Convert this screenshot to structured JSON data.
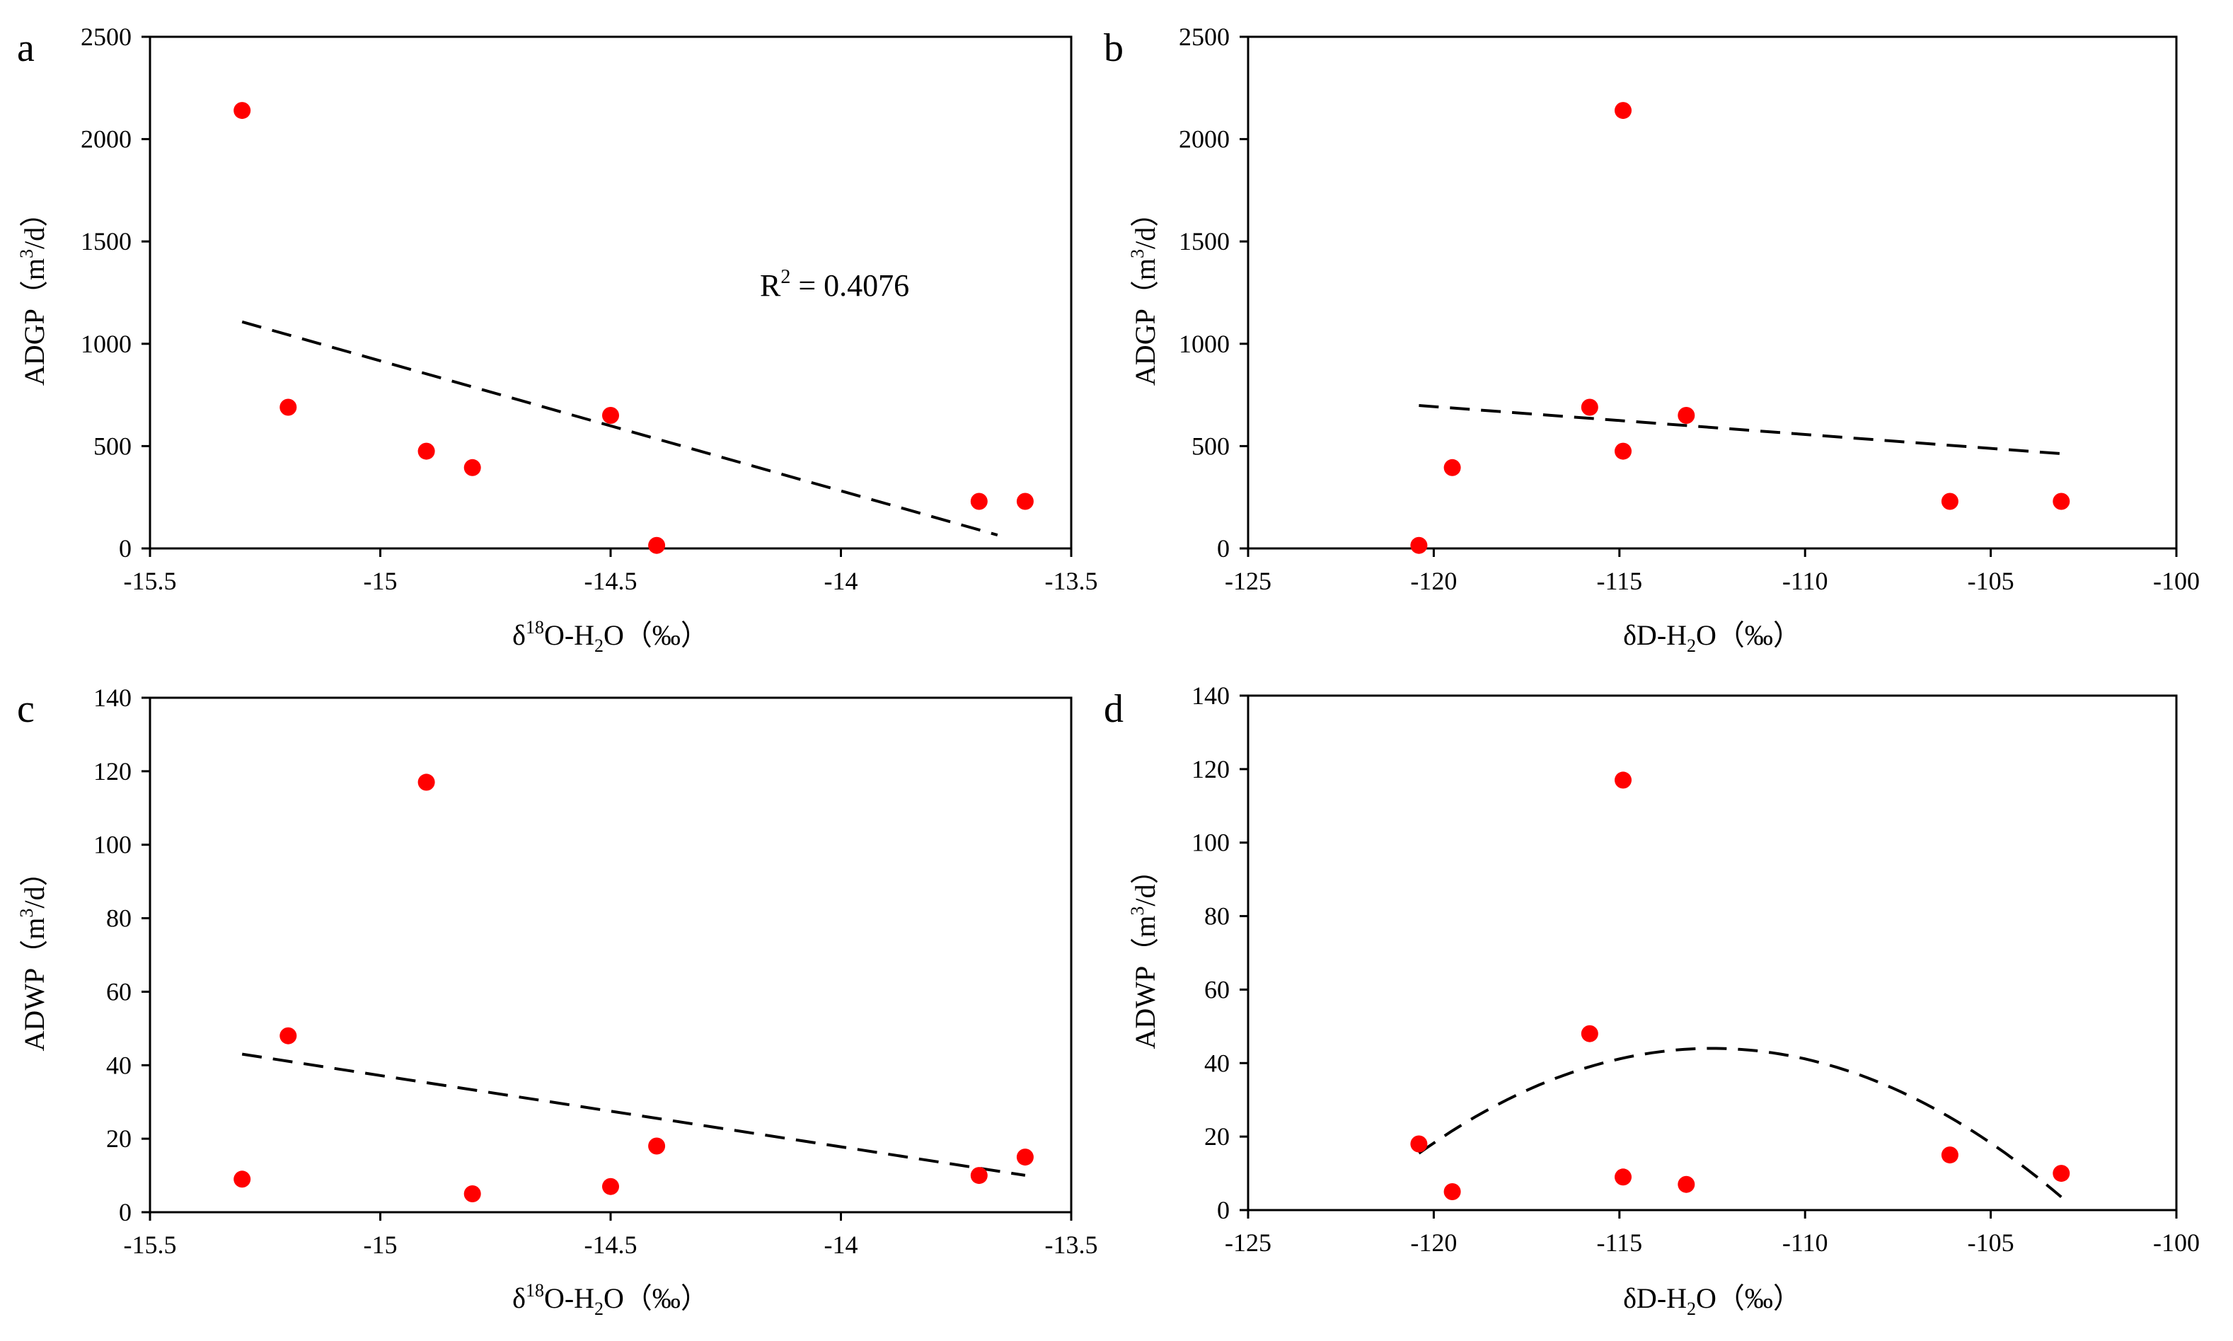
{
  "chart_data": [
    {
      "id": "a",
      "type": "scatter",
      "panel_label": "a",
      "xlabel": {
        "pre": "δ",
        "sup": "18",
        "mid": "O-H",
        "sub": "2",
        "post": "O（‰）"
      },
      "ylabel": {
        "pre": "ADGP（m",
        "sup": "3",
        "post": "/d）"
      },
      "xlim": [
        -15.5,
        -13.5
      ],
      "ylim": [
        0,
        2500
      ],
      "xticks": [
        -15.5,
        -15,
        -14.5,
        -14,
        -13.5
      ],
      "xtick_labels": [
        "-15.5",
        "-15",
        "-14.5",
        "-14",
        "-13.5"
      ],
      "yticks": [
        0,
        500,
        1000,
        1500,
        2000,
        2500
      ],
      "ytick_labels": [
        "0",
        "500",
        "1000",
        "1500",
        "2000",
        "2500"
      ],
      "points": [
        [
          -15.3,
          2140
        ],
        [
          -15.2,
          690
        ],
        [
          -14.9,
          475
        ],
        [
          -14.8,
          395
        ],
        [
          -14.5,
          650
        ],
        [
          -14.4,
          15
        ],
        [
          -13.7,
          230
        ],
        [
          -13.6,
          230
        ]
      ],
      "trendline": {
        "kind": "linear",
        "coef": [
          -635.3,
          -8613.0
        ],
        "x_range": [
          -15.3,
          -13.66
        ]
      },
      "annotation": {
        "pre": "R",
        "sup": "2",
        "post": " = 0.4076"
      }
    },
    {
      "id": "b",
      "type": "scatter",
      "panel_label": "b",
      "xlabel": {
        "pre": "δD-H",
        "sub": "2",
        "post": "O（‰）"
      },
      "ylabel": {
        "pre": "ADGP（m",
        "sup": "3",
        "post": "/d）"
      },
      "xlim": [
        -125,
        -100
      ],
      "ylim": [
        0,
        2500
      ],
      "xticks": [
        -125,
        -120,
        -115,
        -110,
        -105,
        -100
      ],
      "xtick_labels": [
        "-125",
        "-120",
        "-115",
        "-110",
        "-105",
        "-100"
      ],
      "yticks": [
        0,
        500,
        1000,
        1500,
        2000,
        2500
      ],
      "ytick_labels": [
        "0",
        "500",
        "1000",
        "1500",
        "2000",
        "2500"
      ],
      "points": [
        [
          -120.4,
          15
        ],
        [
          -119.5,
          395
        ],
        [
          -115.8,
          690
        ],
        [
          -114.9,
          2140
        ],
        [
          -114.9,
          475
        ],
        [
          -113.2,
          650
        ],
        [
          -106.1,
          230
        ],
        [
          -103.1,
          230
        ]
      ],
      "trendline": {
        "kind": "linear",
        "coef": [
          -13.6,
          -939.0
        ],
        "x_range": [
          -120.4,
          -103.1
        ]
      }
    },
    {
      "id": "c",
      "type": "scatter",
      "panel_label": "c",
      "xlabel": {
        "pre": "δ",
        "sup": "18",
        "mid": "O-H",
        "sub": "2",
        "post": "O（‰）"
      },
      "ylabel": {
        "pre": "ADWP（m",
        "sup": "3",
        "post": "/d）"
      },
      "xlim": [
        -15.5,
        -13.5
      ],
      "ylim": [
        0,
        140
      ],
      "xticks": [
        -15.5,
        -15,
        -14.5,
        -14,
        -13.5
      ],
      "xtick_labels": [
        "-15.5",
        "-15",
        "-14.5",
        "-14",
        "-13.5"
      ],
      "yticks": [
        0,
        20,
        40,
        60,
        80,
        100,
        120,
        140
      ],
      "ytick_labels": [
        "0",
        "20",
        "40",
        "60",
        "80",
        "100",
        "120",
        "140"
      ],
      "points": [
        [
          -15.3,
          9
        ],
        [
          -15.2,
          48
        ],
        [
          -14.9,
          117
        ],
        [
          -14.8,
          5
        ],
        [
          -14.5,
          7
        ],
        [
          -14.4,
          18
        ],
        [
          -13.7,
          10
        ],
        [
          -13.6,
          15
        ]
      ],
      "trendline": {
        "kind": "linear",
        "coef": [
          -19.4,
          -253.8
        ],
        "x_range": [
          -15.3,
          -13.6
        ]
      }
    },
    {
      "id": "d",
      "type": "scatter",
      "panel_label": "d",
      "xlabel": {
        "pre": "δD-H",
        "sub": "2",
        "post": "O（‰）"
      },
      "ylabel": {
        "pre": "ADWP（m",
        "sup": "3",
        "post": "/d）"
      },
      "xlim": [
        -125,
        -100
      ],
      "ylim": [
        0,
        140
      ],
      "xticks": [
        -125,
        -120,
        -115,
        -110,
        -105,
        -100
      ],
      "xtick_labels": [
        "-125",
        "-120",
        "-115",
        "-110",
        "-105",
        "-100"
      ],
      "yticks": [
        0,
        20,
        40,
        60,
        80,
        100,
        120,
        140
      ],
      "ytick_labels": [
        "0",
        "20",
        "40",
        "60",
        "80",
        "100",
        "120",
        "140"
      ],
      "points": [
        [
          -120.4,
          18
        ],
        [
          -119.5,
          5
        ],
        [
          -115.8,
          48
        ],
        [
          -114.9,
          117
        ],
        [
          -114.9,
          9
        ],
        [
          -113.2,
          7
        ],
        [
          -106.1,
          15
        ],
        [
          -103.1,
          10
        ]
      ],
      "trendline": {
        "kind": "quadratic",
        "vertex": [
          -112.5,
          44
        ],
        "a": -0.4577,
        "x_range": [
          -120.4,
          -103.1
        ]
      }
    }
  ]
}
